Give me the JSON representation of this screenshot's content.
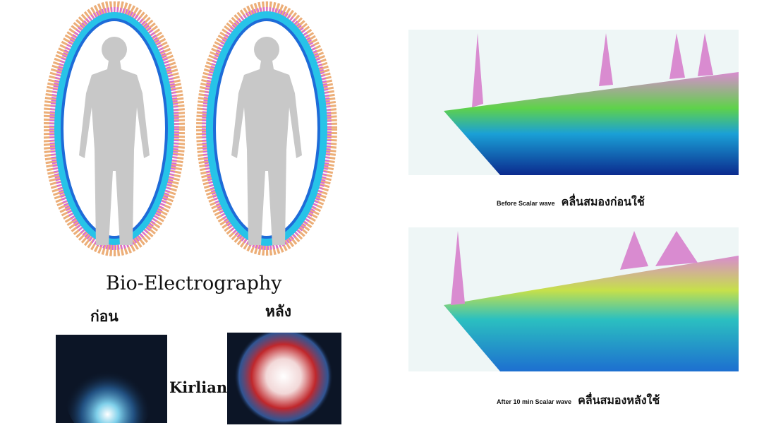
{
  "left": {
    "heading": "Bio-Electrography",
    "before_label": "ก่อน",
    "after_label": "หลัง",
    "kirlian_label": "Kirlian"
  },
  "right": {
    "top_caption_en": "Before Scalar wave",
    "top_caption_th": "คลื่นสมองก่อนใช้",
    "bottom_caption_en": "After 10 min Scalar wave",
    "bottom_caption_th": "คลื่นสมองหลังใช้"
  },
  "colors": {
    "silhouette": "#c8c8c8",
    "aura_inner": "#1e6bd8",
    "aura_mid": "#27c3e8",
    "aura_outer": "#e79a56",
    "aura_pink": "#d86ad8",
    "wave_blue": "#0b2a8e",
    "wave_green": "#5fd24a",
    "wave_peak": "#d98bd0"
  },
  "icons": [
    "body-silhouette-icon",
    "aura-ring-icon",
    "kirlian-glow-icon",
    "wave-surface-icon"
  ]
}
